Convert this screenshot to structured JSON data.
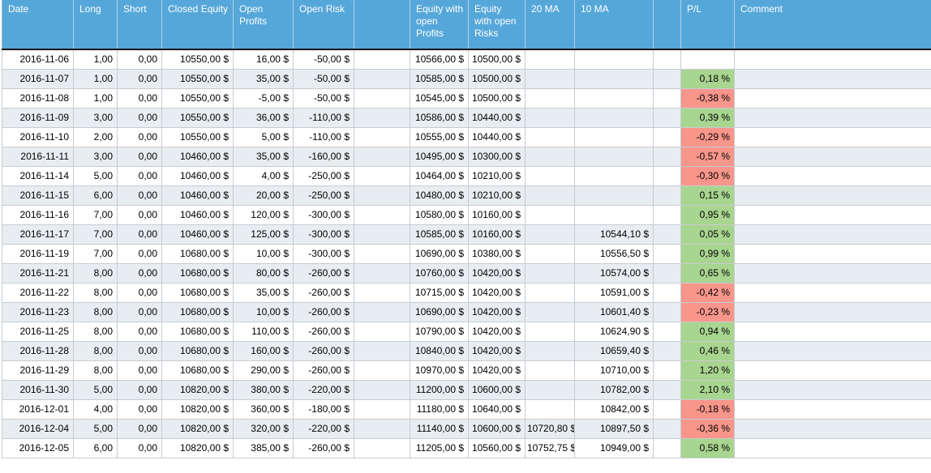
{
  "colors": {
    "header_bg": "#56a7d9",
    "stripe_bg": "#e8edf2",
    "positive_bg": "#a8d58f",
    "negative_bg": "#f8968b"
  },
  "table": {
    "column_keys": [
      "date",
      "long",
      "short",
      "closed-equity",
      "open-profits",
      "open-risk",
      "spacer-1",
      "equity-with-open-profits",
      "equity-with-open-risks",
      "20-ma",
      "10-ma",
      "spacer-2",
      "pl",
      "comment"
    ],
    "columns": [
      {
        "label": "Date"
      },
      {
        "label": "Long"
      },
      {
        "label": "Short"
      },
      {
        "label": "Closed Equity"
      },
      {
        "label": "Open Profits"
      },
      {
        "label": "Open Risk"
      },
      {
        "label": ""
      },
      {
        "label": "Equity with open Profits"
      },
      {
        "label": "Equity with open Risks"
      },
      {
        "label": "20 MA"
      },
      {
        "label": "10 MA"
      },
      {
        "label": ""
      },
      {
        "label": "P/L"
      },
      {
        "label": "Comment"
      }
    ],
    "rows": [
      {
        "cells": [
          "2016-11-06",
          "1,00",
          "0,00",
          "10550,00 $",
          "16,00 $",
          "-50,00 $",
          "",
          "10566,00 $",
          "10500,00 $",
          "",
          "",
          "",
          "",
          ""
        ]
      },
      {
        "cells": [
          "2016-11-07",
          "1,00",
          "0,00",
          "10550,00 $",
          "35,00 $",
          "-50,00 $",
          "",
          "10585,00 $",
          "10500,00 $",
          "",
          "",
          "",
          "0,18 %",
          ""
        ]
      },
      {
        "cells": [
          "2016-11-08",
          "1,00",
          "0,00",
          "10550,00 $",
          "-5,00 $",
          "-50,00 $",
          "",
          "10545,00 $",
          "10500,00 $",
          "",
          "",
          "",
          "-0,38 %",
          ""
        ]
      },
      {
        "cells": [
          "2016-11-09",
          "3,00",
          "0,00",
          "10550,00 $",
          "36,00 $",
          "-110,00 $",
          "",
          "10586,00 $",
          "10440,00 $",
          "",
          "",
          "",
          "0,39 %",
          ""
        ]
      },
      {
        "cells": [
          "2016-11-10",
          "2,00",
          "0,00",
          "10550,00 $",
          "5,00 $",
          "-110,00 $",
          "",
          "10555,00 $",
          "10440,00 $",
          "",
          "",
          "",
          "-0,29 %",
          ""
        ]
      },
      {
        "cells": [
          "2016-11-11",
          "3,00",
          "0,00",
          "10460,00 $",
          "35,00 $",
          "-160,00 $",
          "",
          "10495,00 $",
          "10300,00 $",
          "",
          "",
          "",
          "-0,57 %",
          ""
        ]
      },
      {
        "cells": [
          "2016-11-14",
          "5,00",
          "0,00",
          "10460,00 $",
          "4,00 $",
          "-250,00 $",
          "",
          "10464,00 $",
          "10210,00 $",
          "",
          "",
          "",
          "-0,30 %",
          ""
        ]
      },
      {
        "cells": [
          "2016-11-15",
          "6,00",
          "0,00",
          "10460,00 $",
          "20,00 $",
          "-250,00 $",
          "",
          "10480,00 $",
          "10210,00 $",
          "",
          "",
          "",
          "0,15 %",
          ""
        ]
      },
      {
        "cells": [
          "2016-11-16",
          "7,00",
          "0,00",
          "10460,00 $",
          "120,00 $",
          "-300,00 $",
          "",
          "10580,00 $",
          "10160,00 $",
          "",
          "",
          "",
          "0,95 %",
          ""
        ]
      },
      {
        "cells": [
          "2016-11-17",
          "7,00",
          "0,00",
          "10460,00 $",
          "125,00 $",
          "-300,00 $",
          "",
          "10585,00 $",
          "10160,00 $",
          "",
          "10544,10 $",
          "",
          "0,05 %",
          ""
        ]
      },
      {
        "cells": [
          "2016-11-19",
          "7,00",
          "0,00",
          "10680,00 $",
          "10,00 $",
          "-300,00 $",
          "",
          "10690,00 $",
          "10380,00 $",
          "",
          "10556,50 $",
          "",
          "0,99 %",
          ""
        ]
      },
      {
        "cells": [
          "2016-11-21",
          "8,00",
          "0,00",
          "10680,00 $",
          "80,00 $",
          "-260,00 $",
          "",
          "10760,00 $",
          "10420,00 $",
          "",
          "10574,00 $",
          "",
          "0,65 %",
          ""
        ]
      },
      {
        "cells": [
          "2016-11-22",
          "8,00",
          "0,00",
          "10680,00 $",
          "35,00 $",
          "-260,00 $",
          "",
          "10715,00 $",
          "10420,00 $",
          "",
          "10591,00 $",
          "",
          "-0,42 %",
          ""
        ]
      },
      {
        "cells": [
          "2016-11-23",
          "8,00",
          "0,00",
          "10680,00 $",
          "10,00 $",
          "-260,00 $",
          "",
          "10690,00 $",
          "10420,00 $",
          "",
          "10601,40 $",
          "",
          "-0,23 %",
          ""
        ]
      },
      {
        "cells": [
          "2016-11-25",
          "8,00",
          "0,00",
          "10680,00 $",
          "110,00 $",
          "-260,00 $",
          "",
          "10790,00 $",
          "10420,00 $",
          "",
          "10624,90 $",
          "",
          "0,94 %",
          ""
        ]
      },
      {
        "cells": [
          "2016-11-28",
          "8,00",
          "0,00",
          "10680,00 $",
          "160,00 $",
          "-260,00 $",
          "",
          "10840,00 $",
          "10420,00 $",
          "",
          "10659,40 $",
          "",
          "0,46 %",
          ""
        ]
      },
      {
        "cells": [
          "2016-11-29",
          "8,00",
          "0,00",
          "10680,00 $",
          "290,00 $",
          "-260,00 $",
          "",
          "10970,00 $",
          "10420,00 $",
          "",
          "10710,00 $",
          "",
          "1,20 %",
          ""
        ]
      },
      {
        "cells": [
          "2016-11-30",
          "5,00",
          "0,00",
          "10820,00 $",
          "380,00 $",
          "-220,00 $",
          "",
          "11200,00 $",
          "10600,00 $",
          "",
          "10782,00 $",
          "",
          "2,10 %",
          ""
        ]
      },
      {
        "cells": [
          "2016-12-01",
          "4,00",
          "0,00",
          "10820,00 $",
          "360,00 $",
          "-180,00 $",
          "",
          "11180,00 $",
          "10640,00 $",
          "",
          "10842,00 $",
          "",
          "-0,18 %",
          ""
        ]
      },
      {
        "cells": [
          "2016-12-04",
          "5,00",
          "0,00",
          "10820,00 $",
          "320,00 $",
          "-220,00 $",
          "",
          "11140,00 $",
          "10600,00 $",
          "10720,80 $",
          "10897,50 $",
          "",
          "-0,36 %",
          ""
        ]
      },
      {
        "cells": [
          "2016-12-05",
          "6,00",
          "0,00",
          "10820,00 $",
          "385,00 $",
          "-260,00 $",
          "",
          "11205,00 $",
          "10560,00 $",
          "10752,75 $",
          "10949,00 $",
          "",
          "0,58 %",
          ""
        ]
      }
    ]
  }
}
